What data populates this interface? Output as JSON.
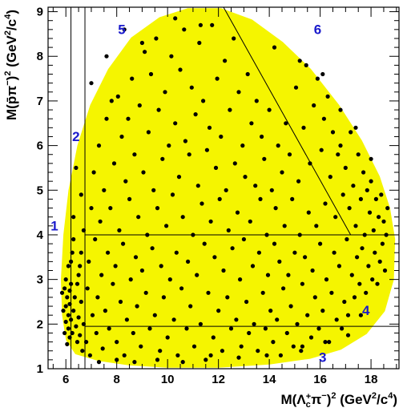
{
  "chart_data": {
    "type": "scatter",
    "title": "",
    "xlabel": "M(Λc+π−)² (GeV²/c⁴)",
    "ylabel": "M(p̄π−)² (GeV²/c⁴)",
    "xlim": [
      5.3,
      19.1
    ],
    "ylim": [
      1.0,
      9.1
    ],
    "x_ticks": [
      6,
      8,
      10,
      12,
      14,
      16,
      18
    ],
    "y_ticks": [
      1,
      2,
      3,
      4,
      5,
      6,
      7,
      8,
      9
    ],
    "grid": false,
    "phase_space_color": "#f5f500",
    "point_color": "#000000",
    "phase_space_boundary": [
      [
        6.4,
        1.35
      ],
      [
        7.3,
        1.2
      ],
      [
        8.5,
        1.1
      ],
      [
        10.0,
        1.05
      ],
      [
        12.0,
        1.05
      ],
      [
        14.0,
        1.12
      ],
      [
        15.6,
        1.25
      ],
      [
        16.8,
        1.45
      ],
      [
        17.8,
        1.8
      ],
      [
        18.5,
        2.3
      ],
      [
        18.85,
        3.0
      ],
      [
        18.9,
        3.9
      ],
      [
        18.7,
        4.6
      ],
      [
        18.3,
        5.3
      ],
      [
        17.6,
        6.1
      ],
      [
        16.7,
        6.9
      ],
      [
        15.6,
        7.7
      ],
      [
        14.5,
        8.3
      ],
      [
        13.3,
        8.8
      ],
      [
        12.1,
        9.05
      ],
      [
        10.8,
        9.05
      ],
      [
        9.7,
        8.85
      ],
      [
        8.6,
        8.4
      ],
      [
        7.7,
        7.7
      ],
      [
        7.0,
        6.9
      ],
      [
        6.5,
        6.0
      ],
      [
        6.15,
        5.0
      ],
      [
        5.95,
        4.0
      ],
      [
        5.85,
        3.0
      ],
      [
        5.9,
        2.2
      ],
      [
        6.05,
        1.65
      ]
    ],
    "divider_lines": [
      {
        "x1": 6.2,
        "y1": 9.1,
        "x2": 6.2,
        "y2": 1.0
      },
      {
        "x1": 6.75,
        "y1": 9.1,
        "x2": 6.75,
        "y2": 1.0
      },
      {
        "x1": 6.75,
        "y1": 4.0,
        "x2": 19.1,
        "y2": 4.0
      },
      {
        "x1": 6.75,
        "y1": 1.95,
        "x2": 19.1,
        "y2": 1.95
      },
      {
        "x1": 12.2,
        "y1": 9.1,
        "x2": 17.2,
        "y2": 4.0
      }
    ],
    "region_labels": [
      {
        "text": "1",
        "x": 5.55,
        "y": 4.1
      },
      {
        "text": "2",
        "x": 6.4,
        "y": 6.1
      },
      {
        "text": "3",
        "x": 16.1,
        "y": 1.15
      },
      {
        "text": "4",
        "x": 17.8,
        "y": 2.2
      },
      {
        "text": "5",
        "x": 8.2,
        "y": 8.5
      },
      {
        "text": "6",
        "x": 15.9,
        "y": 8.5
      }
    ],
    "points": [
      [
        5.85,
        2.7
      ],
      [
        5.9,
        2.3
      ],
      [
        5.95,
        2.8
      ],
      [
        5.95,
        1.8
      ],
      [
        6.0,
        2.05
      ],
      [
        6.0,
        2.4
      ],
      [
        6.0,
        3.0
      ],
      [
        6.05,
        2.6
      ],
      [
        6.05,
        1.55
      ],
      [
        6.1,
        2.2
      ],
      [
        6.1,
        3.3
      ],
      [
        6.1,
        1.9
      ],
      [
        6.15,
        2.75
      ],
      [
        6.15,
        2.45
      ],
      [
        6.15,
        1.7
      ],
      [
        6.2,
        2.1
      ],
      [
        6.2,
        2.9
      ],
      [
        6.25,
        3.6
      ],
      [
        6.25,
        1.8
      ],
      [
        6.3,
        2.3
      ],
      [
        6.3,
        3.9
      ],
      [
        6.35,
        2.6
      ],
      [
        6.4,
        1.95
      ],
      [
        6.45,
        1.6
      ],
      [
        6.5,
        2.15
      ],
      [
        6.5,
        3.1
      ],
      [
        6.55,
        1.75
      ],
      [
        6.6,
        2.5
      ],
      [
        6.65,
        1.4
      ],
      [
        6.6,
        4.9
      ],
      [
        6.6,
        3.6
      ],
      [
        6.7,
        2.0
      ],
      [
        6.8,
        1.6
      ],
      [
        6.85,
        2.8
      ],
      [
        6.9,
        3.4
      ],
      [
        6.95,
        1.3
      ],
      [
        7.0,
        4.6
      ],
      [
        7.05,
        2.2
      ],
      [
        7.1,
        5.4
      ],
      [
        7.15,
        3.9
      ],
      [
        7.2,
        1.8
      ],
      [
        7.25,
        2.6
      ],
      [
        7.3,
        6.0
      ],
      [
        7.35,
        4.3
      ],
      [
        7.4,
        3.1
      ],
      [
        7.45,
        1.45
      ],
      [
        7.5,
        5.0
      ],
      [
        7.55,
        2.3
      ],
      [
        7.6,
        6.6
      ],
      [
        7.65,
        3.6
      ],
      [
        7.7,
        1.9
      ],
      [
        7.75,
        4.6
      ],
      [
        7.8,
        7.0
      ],
      [
        7.85,
        2.9
      ],
      [
        7.9,
        5.6
      ],
      [
        7.95,
        3.3
      ],
      [
        8.0,
        1.6
      ],
      [
        8.05,
        7.1
      ],
      [
        8.1,
        4.1
      ],
      [
        8.15,
        2.5
      ],
      [
        8.2,
        6.2
      ],
      [
        8.25,
        3.8
      ],
      [
        8.3,
        1.3
      ],
      [
        8.35,
        5.2
      ],
      [
        8.4,
        2.1
      ],
      [
        8.45,
        6.6
      ],
      [
        8.5,
        4.8
      ],
      [
        8.55,
        3.0
      ],
      [
        8.6,
        7.5
      ],
      [
        8.65,
        1.8
      ],
      [
        8.7,
        5.8
      ],
      [
        8.75,
        3.5
      ],
      [
        8.8,
        2.4
      ],
      [
        8.85,
        4.4
      ],
      [
        8.9,
        6.9
      ],
      [
        8.95,
        1.5
      ],
      [
        9.0,
        3.2
      ],
      [
        9.05,
        5.4
      ],
      [
        9.1,
        8.1
      ],
      [
        9.15,
        2.7
      ],
      [
        9.2,
        4.0
      ],
      [
        9.25,
        6.3
      ],
      [
        9.3,
        1.9
      ],
      [
        9.35,
        7.6
      ],
      [
        9.4,
        3.7
      ],
      [
        9.45,
        5.0
      ],
      [
        9.5,
        2.2
      ],
      [
        9.55,
        8.4
      ],
      [
        9.6,
        4.6
      ],
      [
        9.65,
        6.8
      ],
      [
        9.7,
        1.4
      ],
      [
        9.75,
        3.3
      ],
      [
        9.8,
        5.7
      ],
      [
        9.85,
        2.6
      ],
      [
        9.9,
        7.2
      ],
      [
        9.95,
        4.2
      ],
      [
        10.0,
        1.7
      ],
      [
        10.05,
        6.0
      ],
      [
        10.1,
        3.0
      ],
      [
        10.15,
        8.0
      ],
      [
        10.2,
        4.9
      ],
      [
        10.25,
        2.1
      ],
      [
        10.3,
        6.5
      ],
      [
        10.35,
        3.6
      ],
      [
        10.4,
        1.3
      ],
      [
        10.45,
        5.3
      ],
      [
        10.5,
        7.7
      ],
      [
        10.55,
        2.8
      ],
      [
        10.6,
        4.4
      ],
      [
        10.65,
        8.6
      ],
      [
        10.7,
        6.1
      ],
      [
        10.75,
        1.9
      ],
      [
        10.8,
        3.4
      ],
      [
        10.85,
        5.8
      ],
      [
        10.9,
        2.4
      ],
      [
        10.95,
        7.3
      ],
      [
        11.0,
        4.0
      ],
      [
        11.05,
        1.5
      ],
      [
        11.1,
        6.7
      ],
      [
        11.15,
        3.1
      ],
      [
        11.2,
        5.1
      ],
      [
        11.25,
        8.3
      ],
      [
        11.3,
        2.0
      ],
      [
        11.35,
        4.7
      ],
      [
        11.4,
        7.0
      ],
      [
        11.45,
        3.8
      ],
      [
        11.5,
        1.2
      ],
      [
        11.55,
        5.9
      ],
      [
        11.6,
        2.7
      ],
      [
        11.65,
        6.4
      ],
      [
        11.7,
        4.3
      ],
      [
        11.75,
        8.7
      ],
      [
        11.8,
        1.7
      ],
      [
        11.85,
        3.5
      ],
      [
        11.9,
        5.5
      ],
      [
        11.95,
        7.5
      ],
      [
        12.0,
        2.3
      ],
      [
        12.05,
        4.8
      ],
      [
        12.1,
        6.2
      ],
      [
        12.15,
        1.4
      ],
      [
        12.2,
        3.2
      ],
      [
        12.25,
        7.9
      ],
      [
        12.3,
        5.0
      ],
      [
        12.35,
        2.6
      ],
      [
        12.4,
        4.1
      ],
      [
        12.45,
        6.8
      ],
      [
        12.5,
        1.9
      ],
      [
        12.55,
        3.7
      ],
      [
        12.6,
        8.4
      ],
      [
        12.65,
        5.6
      ],
      [
        12.7,
        2.1
      ],
      [
        12.75,
        4.5
      ],
      [
        12.8,
        7.2
      ],
      [
        12.85,
        3.0
      ],
      [
        12.9,
        1.5
      ],
      [
        12.95,
        6.0
      ],
      [
        13.0,
        3.9
      ],
      [
        13.05,
        5.3
      ],
      [
        13.1,
        2.5
      ],
      [
        13.15,
        7.6
      ],
      [
        13.2,
        1.8
      ],
      [
        13.25,
        4.3
      ],
      [
        13.3,
        6.5
      ],
      [
        13.35,
        3.3
      ],
      [
        13.4,
        2.0
      ],
      [
        13.45,
        5.1
      ],
      [
        13.5,
        7.0
      ],
      [
        13.55,
        1.4
      ],
      [
        13.6,
        3.6
      ],
      [
        13.65,
        4.8
      ],
      [
        13.7,
        6.2
      ],
      [
        13.75,
        2.7
      ],
      [
        13.8,
        5.7
      ],
      [
        13.85,
        1.9
      ],
      [
        13.9,
        4.0
      ],
      [
        13.95,
        3.1
      ],
      [
        14.0,
        6.8
      ],
      [
        14.05,
        2.3
      ],
      [
        14.1,
        5.0
      ],
      [
        14.15,
        1.6
      ],
      [
        14.2,
        3.8
      ],
      [
        14.25,
        4.6
      ],
      [
        14.3,
        2.1
      ],
      [
        14.35,
        6.0
      ],
      [
        14.4,
        3.4
      ],
      [
        14.45,
        1.3
      ],
      [
        14.5,
        5.4
      ],
      [
        14.55,
        2.8
      ],
      [
        14.6,
        4.2
      ],
      [
        14.65,
        6.5
      ],
      [
        14.7,
        1.8
      ],
      [
        14.75,
        3.1
      ],
      [
        14.8,
        5.8
      ],
      [
        14.85,
        2.4
      ],
      [
        14.9,
        4.8
      ],
      [
        14.95,
        1.5
      ],
      [
        15.0,
        3.6
      ],
      [
        15.05,
        7.3
      ],
      [
        15.1,
        2.0
      ],
      [
        15.15,
        5.2
      ],
      [
        15.2,
        4.0
      ],
      [
        15.25,
        1.4
      ],
      [
        15.3,
        2.9
      ],
      [
        15.35,
        6.4
      ],
      [
        15.4,
        3.5
      ],
      [
        15.45,
        7.8
      ],
      [
        15.5,
        2.2
      ],
      [
        15.55,
        4.5
      ],
      [
        15.6,
        5.6
      ],
      [
        15.65,
        1.7
      ],
      [
        15.7,
        3.2
      ],
      [
        15.75,
        6.9
      ],
      [
        15.8,
        2.6
      ],
      [
        15.85,
        4.2
      ],
      [
        15.9,
        7.5
      ],
      [
        15.95,
        1.9
      ],
      [
        16.0,
        3.8
      ],
      [
        16.05,
        5.9
      ],
      [
        16.1,
        2.3
      ],
      [
        16.15,
        6.6
      ],
      [
        16.2,
        4.7
      ],
      [
        16.25,
        3.0
      ],
      [
        16.3,
        7.1
      ],
      [
        16.35,
        1.6
      ],
      [
        16.4,
        5.3
      ],
      [
        16.45,
        2.7
      ],
      [
        16.5,
        6.3
      ],
      [
        16.55,
        3.6
      ],
      [
        16.6,
        4.4
      ],
      [
        16.65,
        2.1
      ],
      [
        16.7,
        5.8
      ],
      [
        16.75,
        3.3
      ],
      [
        16.8,
        6.0
      ],
      [
        16.85,
        1.9
      ],
      [
        16.9,
        4.9
      ],
      [
        16.95,
        2.5
      ],
      [
        17.0,
        5.5
      ],
      [
        17.05,
        3.9
      ],
      [
        17.1,
        2.2
      ],
      [
        17.15,
        4.6
      ],
      [
        17.2,
        6.3
      ],
      [
        17.25,
        3.1
      ],
      [
        17.3,
        5.1
      ],
      [
        17.35,
        2.6
      ],
      [
        17.4,
        4.2
      ],
      [
        17.45,
        3.5
      ],
      [
        17.5,
        5.8
      ],
      [
        17.55,
        2.9
      ],
      [
        17.6,
        4.8
      ],
      [
        17.65,
        3.7
      ],
      [
        17.7,
        5.4
      ],
      [
        17.75,
        4.0
      ],
      [
        17.8,
        2.7
      ],
      [
        17.85,
        5.0
      ],
      [
        17.9,
        3.3
      ],
      [
        17.95,
        4.5
      ],
      [
        18.0,
        5.2
      ],
      [
        18.05,
        3.0
      ],
      [
        18.1,
        4.1
      ],
      [
        18.15,
        3.6
      ],
      [
        18.2,
        4.8
      ],
      [
        18.25,
        2.9
      ],
      [
        18.3,
        4.4
      ],
      [
        18.35,
        3.4
      ],
      [
        18.4,
        4.9
      ],
      [
        18.45,
        3.8
      ],
      [
        18.5,
        4.3
      ],
      [
        18.55,
        3.2
      ],
      [
        18.6,
        4.0
      ],
      [
        18.65,
        4.6
      ],
      [
        7.3,
        1.15
      ],
      [
        8.0,
        1.2
      ],
      [
        8.7,
        1.15
      ],
      [
        9.6,
        1.2
      ],
      [
        10.6,
        1.15
      ],
      [
        11.7,
        1.3
      ],
      [
        12.8,
        1.25
      ],
      [
        13.9,
        1.3
      ],
      [
        15.3,
        1.5
      ],
      [
        16.2,
        1.6
      ],
      [
        17.1,
        1.75
      ],
      [
        17.6,
        2.2
      ],
      [
        7.0,
        7.4
      ],
      [
        7.6,
        8.0
      ],
      [
        8.3,
        8.6
      ],
      [
        9.0,
        8.3
      ],
      [
        10.3,
        8.85
      ],
      [
        11.3,
        8.7
      ],
      [
        14.2,
        8.2
      ],
      [
        15.2,
        7.9
      ],
      [
        16.1,
        7.6
      ],
      [
        16.8,
        6.8
      ],
      [
        17.4,
        6.4
      ],
      [
        18.0,
        5.7
      ],
      [
        6.4,
        5.5
      ],
      [
        6.3,
        4.4
      ],
      [
        6.2,
        3.4
      ],
      [
        6.45,
        2.9
      ],
      [
        6.55,
        3.3
      ],
      [
        6.7,
        4.1
      ]
    ]
  }
}
